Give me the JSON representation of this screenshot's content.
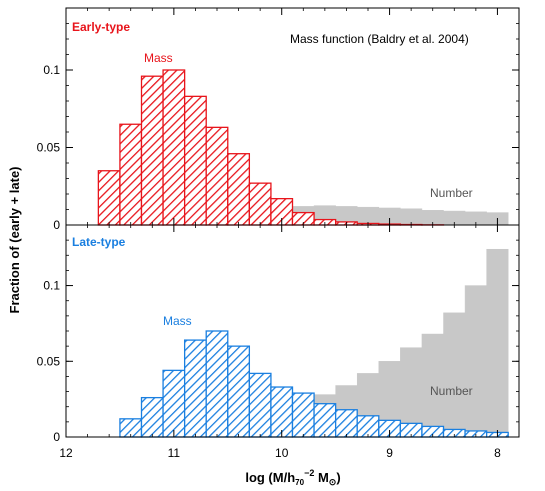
{
  "chart_data": {
    "type": "bar",
    "title": "Mass function (Baldry et al. 2004)",
    "xlabel": "log (M/h₇₀⁻² M☉)",
    "xlabel_parts": {
      "prefix": "log (M/h",
      "sub": "70",
      "sup": "−2",
      "mid": " M",
      "sun": "⊙",
      "suffix": ")"
    },
    "ylabel": "Fraction of (early + late)",
    "xlim": [
      12,
      7.8
    ],
    "x_ticks": [
      12,
      11,
      10,
      9,
      8
    ],
    "x_reversed": true,
    "bin_width": 0.2,
    "colors": {
      "early": "#e8141b",
      "late": "#1a7fe0",
      "number": "#c8c8c8"
    },
    "panels": [
      {
        "label": "Early-type",
        "ylim": [
          0,
          0.14
        ],
        "y_ticks": [
          0,
          0.05,
          0.1
        ],
        "y_tick_labels": [
          "0",
          "0.05",
          "0.1"
        ],
        "series": [
          {
            "name": "Number",
            "style": "filled",
            "bin_left_edges": [
              10.9,
              10.7,
              10.5,
              10.3,
              10.1,
              9.9,
              9.7,
              9.5,
              9.3,
              9.1,
              8.9,
              8.7,
              8.5,
              8.3,
              8.1
            ],
            "values": [
              0.001,
              0.003,
              0.006,
              0.009,
              0.011,
              0.012,
              0.0125,
              0.012,
              0.0115,
              0.011,
              0.0105,
              0.0095,
              0.009,
              0.0085,
              0.008
            ]
          },
          {
            "name": "Mass",
            "style": "hatched",
            "bin_left_edges": [
              11.7,
              11.5,
              11.3,
              11.1,
              10.9,
              10.7,
              10.5,
              10.3,
              10.1,
              9.9,
              9.7,
              9.5,
              9.3,
              9.1,
              8.9,
              8.7
            ],
            "values": [
              0.035,
              0.065,
              0.096,
              0.1,
              0.083,
              0.063,
              0.046,
              0.027,
              0.017,
              0.008,
              0.0035,
              0.002,
              0.001,
              0.0006,
              0.0003,
              0.0001
            ]
          }
        ]
      },
      {
        "label": "Late-type",
        "ylim": [
          0,
          0.14
        ],
        "y_ticks": [
          0,
          0.05,
          0.1
        ],
        "y_tick_labels": [
          "0",
          "0.05",
          "0.1"
        ],
        "series": [
          {
            "name": "Number",
            "style": "filled",
            "bin_left_edges": [
              10.9,
              10.7,
              10.5,
              10.3,
              10.1,
              9.9,
              9.7,
              9.5,
              9.3,
              9.1,
              8.9,
              8.7,
              8.5,
              8.3,
              8.1
            ],
            "values": [
              0.002,
              0.006,
              0.01,
              0.014,
              0.018,
              0.022,
              0.028,
              0.034,
              0.042,
              0.05,
              0.059,
              0.068,
              0.082,
              0.1,
              0.124
            ]
          },
          {
            "name": "Mass",
            "style": "hatched",
            "bin_left_edges": [
              11.5,
              11.3,
              11.1,
              10.9,
              10.7,
              10.5,
              10.3,
              10.1,
              9.9,
              9.7,
              9.5,
              9.3,
              9.1,
              8.9,
              8.7,
              8.5,
              8.3,
              8.1
            ],
            "values": [
              0.012,
              0.026,
              0.044,
              0.064,
              0.07,
              0.06,
              0.042,
              0.033,
              0.029,
              0.022,
              0.018,
              0.014,
              0.011,
              0.009,
              0.007,
              0.005,
              0.004,
              0.003
            ]
          }
        ]
      }
    ]
  }
}
